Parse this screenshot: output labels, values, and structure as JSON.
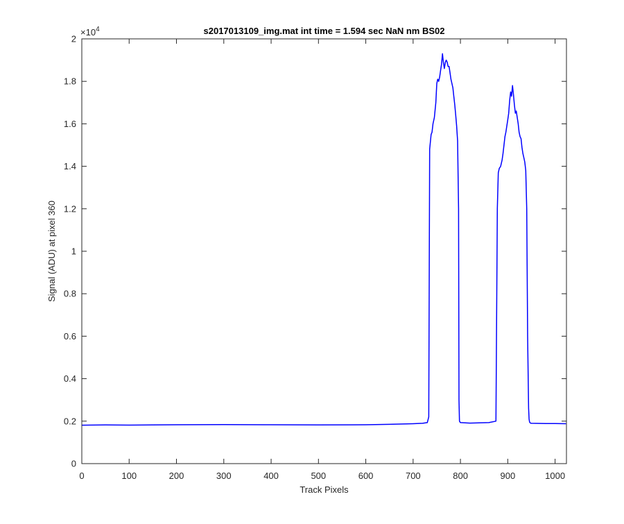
{
  "chart_data": {
    "type": "line",
    "title": "s2017013109_img.mat int time = 1.594 sec  NaN nm BS02",
    "xlabel": "Track Pixels",
    "ylabel": "Signal (ADU) at pixel 360",
    "xlim": [
      0,
      1024
    ],
    "ylim": [
      0,
      20000
    ],
    "xticks": [
      0,
      100,
      200,
      300,
      400,
      500,
      600,
      700,
      800,
      900,
      1000
    ],
    "xtick_labels": [
      "0",
      "100",
      "200",
      "300",
      "400",
      "500",
      "600",
      "700",
      "800",
      "900",
      "1000"
    ],
    "yticks": [
      0,
      2000,
      4000,
      6000,
      8000,
      10000,
      12000,
      14000,
      16000,
      18000,
      20000
    ],
    "ytick_labels": [
      "0",
      "0.2",
      "0.4",
      "0.6",
      "0.8",
      "1",
      "1.2",
      "1.4",
      "1.6",
      "1.8",
      "2"
    ],
    "y_exponent_label": "×10",
    "y_exponent_power": "4",
    "grid": false,
    "line_color": "#0000ff",
    "series": [
      {
        "x": [
          0,
          50,
          100,
          200,
          300,
          400,
          500,
          600,
          650,
          700,
          720,
          730,
          733,
          735,
          738,
          740,
          742,
          745,
          748,
          750,
          752,
          754,
          756,
          758,
          760,
          762,
          764,
          766,
          768,
          770,
          772,
          774,
          776,
          778,
          780,
          782,
          784,
          786,
          788,
          790,
          792,
          794,
          796,
          797,
          798,
          800,
          820,
          840,
          860,
          875,
          878,
          880,
          882,
          885,
          888,
          890,
          892,
          894,
          896,
          898,
          900,
          902,
          904,
          906,
          908,
          910,
          912,
          914,
          916,
          918,
          920,
          922,
          924,
          926,
          928,
          930,
          932,
          934,
          936,
          938,
          940,
          942,
          944,
          945,
          946,
          947,
          948,
          950,
          980,
          1000,
          1023
        ],
        "y": [
          1810,
          1820,
          1815,
          1830,
          1835,
          1830,
          1820,
          1830,
          1850,
          1880,
          1900,
          1930,
          2200,
          14800,
          15500,
          15600,
          16000,
          16300,
          17000,
          17900,
          18100,
          18000,
          18200,
          18500,
          18800,
          19300,
          18900,
          18600,
          18900,
          19000,
          18900,
          18700,
          18700,
          18400,
          18100,
          17900,
          17700,
          17300,
          16900,
          16400,
          15900,
          15200,
          12000,
          3000,
          2000,
          1930,
          1910,
          1920,
          1930,
          2000,
          12000,
          13700,
          13900,
          14000,
          14300,
          14600,
          15000,
          15400,
          15600,
          15900,
          16200,
          16500,
          17100,
          17500,
          17300,
          17800,
          17400,
          16900,
          16500,
          16600,
          16300,
          16000,
          15600,
          15400,
          15300,
          14900,
          14600,
          14400,
          14200,
          13800,
          12000,
          6000,
          2600,
          2100,
          1960,
          1930,
          1910,
          1900,
          1890,
          1885,
          1880
        ]
      }
    ]
  }
}
